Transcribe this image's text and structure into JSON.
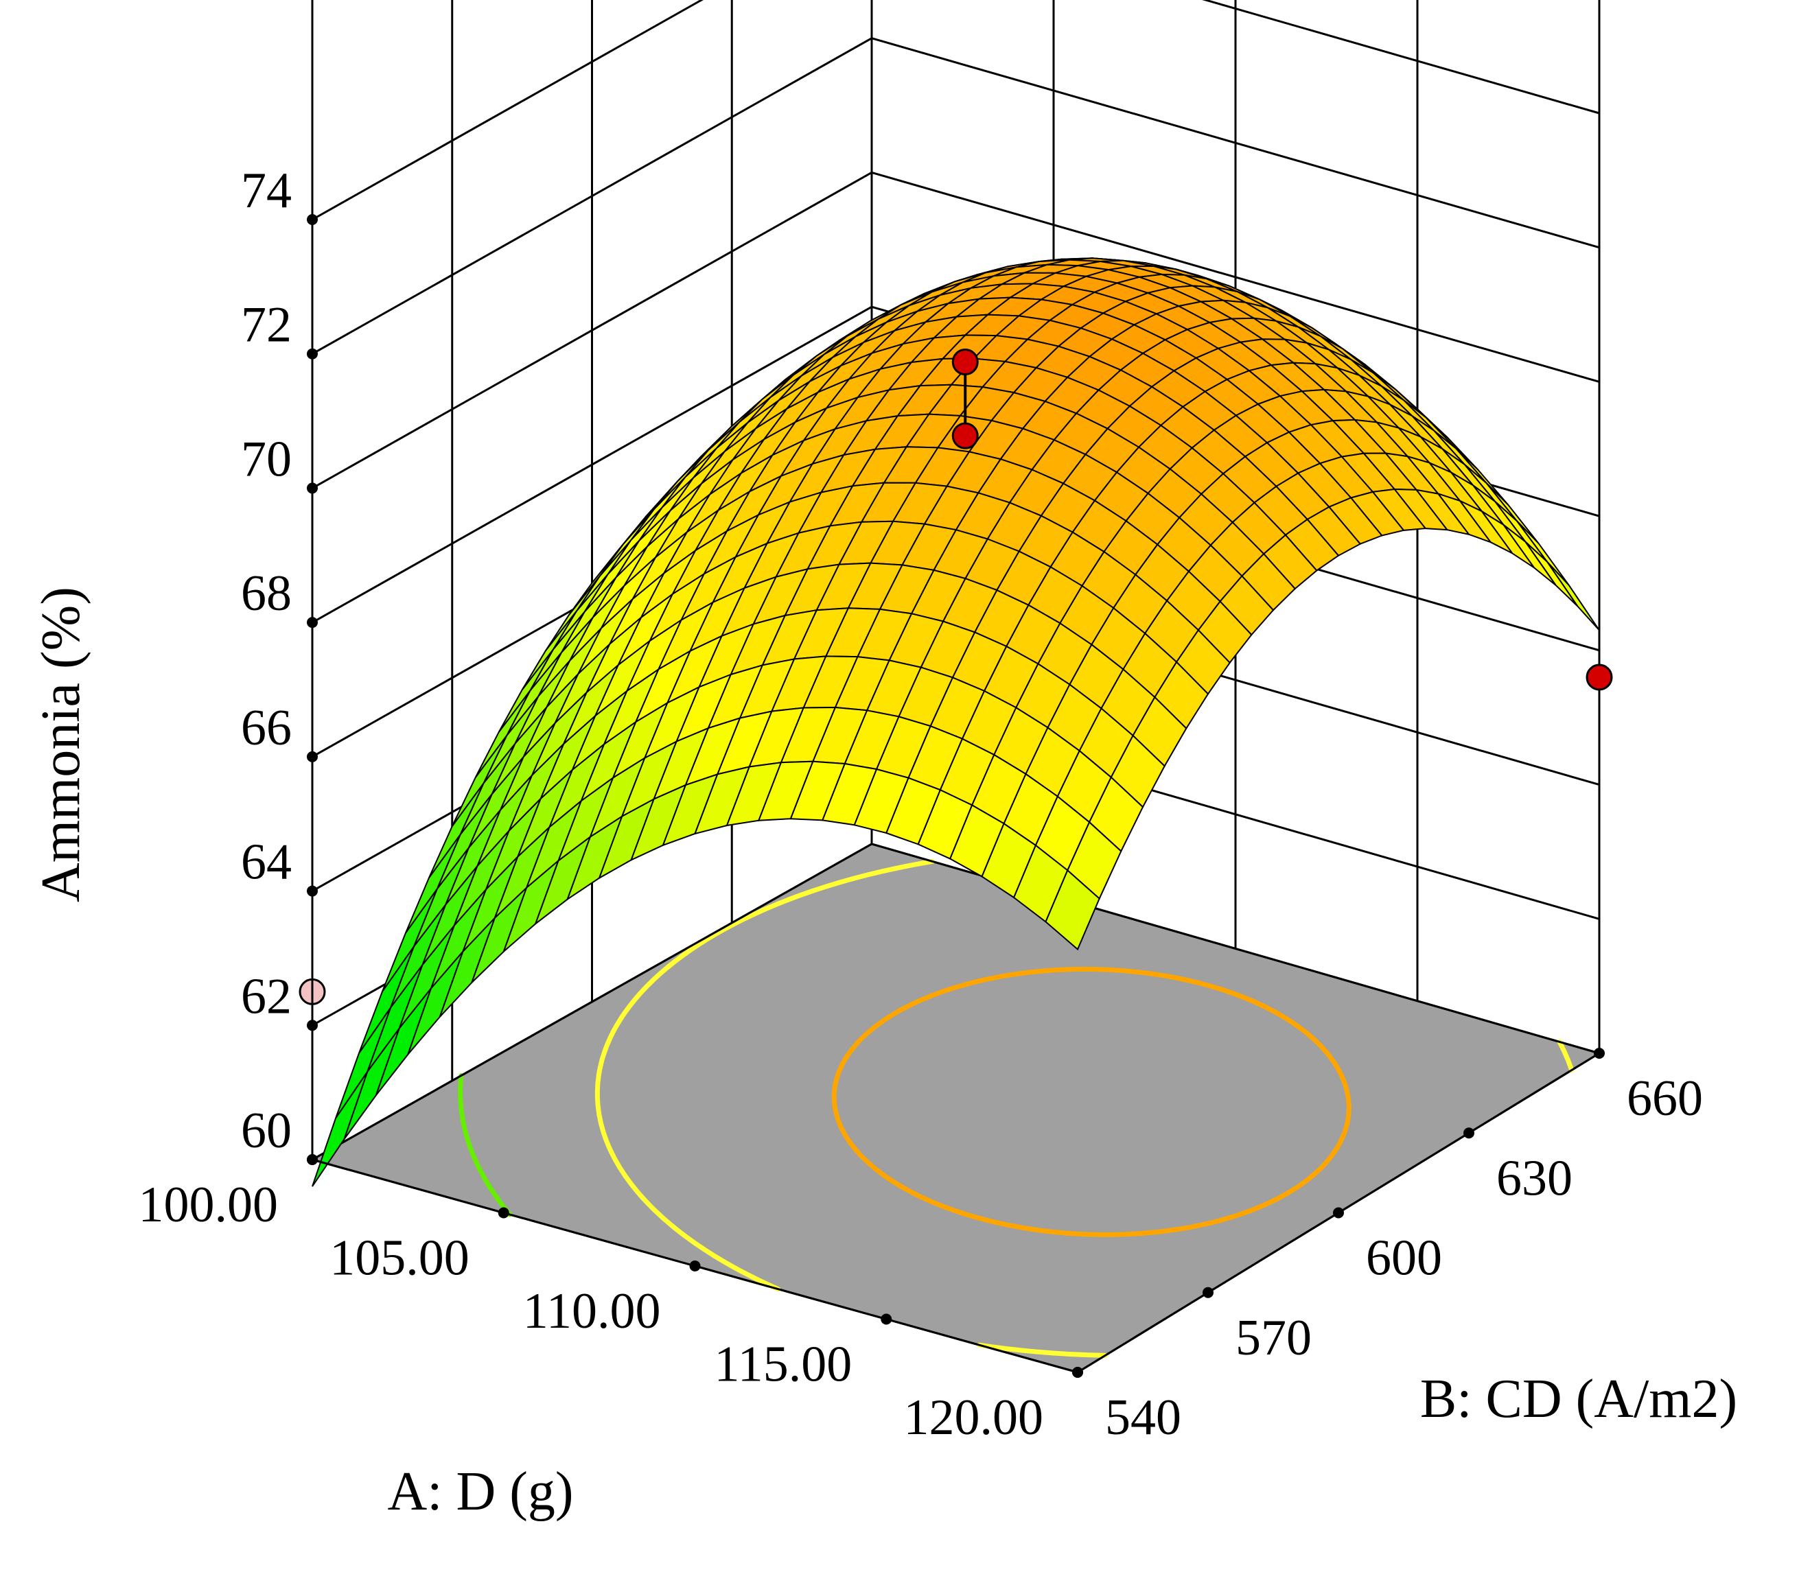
{
  "chart_data": {
    "type": "surface3d",
    "response": {
      "label": "Ammonia (%)",
      "ticks": [
        "60",
        "62",
        "64",
        "66",
        "68",
        "70",
        "72",
        "74"
      ],
      "range": [
        60,
        74
      ]
    },
    "x_axis": {
      "label": "A: D (g)",
      "ticks": [
        "100.00",
        "105.00",
        "110.00",
        "115.00",
        "120.00"
      ],
      "range": [
        100,
        120
      ]
    },
    "y_axis": {
      "label": "B: CD (A/m2)",
      "ticks": [
        "540",
        "570",
        "600",
        "630",
        "660"
      ],
      "range": [
        540,
        660
      ]
    },
    "surface": {
      "model": "quadratic",
      "color_low": "#00ee00",
      "color_mid": "#ffff00",
      "color_high": "#ff9900",
      "corner_values": {
        "A100_B540": 59.6,
        "A120_B540": 66.3,
        "A100_B660": 65.9,
        "A120_B660": 66.3
      },
      "center_value": 71.5,
      "grid_divisions": 24
    },
    "contours": [
      {
        "level": "70.5",
        "color": "#ffa500"
      },
      {
        "level": "67",
        "color": "#ffff33"
      },
      {
        "level": "64",
        "color": "#66ee00"
      }
    ],
    "design_points": [
      {
        "A": 110,
        "B": 600,
        "value": 71.1,
        "color": "#d40000"
      },
      {
        "A": 110,
        "B": 600,
        "value": 70.0,
        "color": "#d40000"
      },
      {
        "A": 120,
        "B": 660,
        "value": 65.6,
        "color": "#d40000"
      },
      {
        "A": 100,
        "B": 540,
        "value": 62.5,
        "color": "#f4c2c2"
      }
    ],
    "floor_color": "#a0a0a0",
    "grid": true
  }
}
